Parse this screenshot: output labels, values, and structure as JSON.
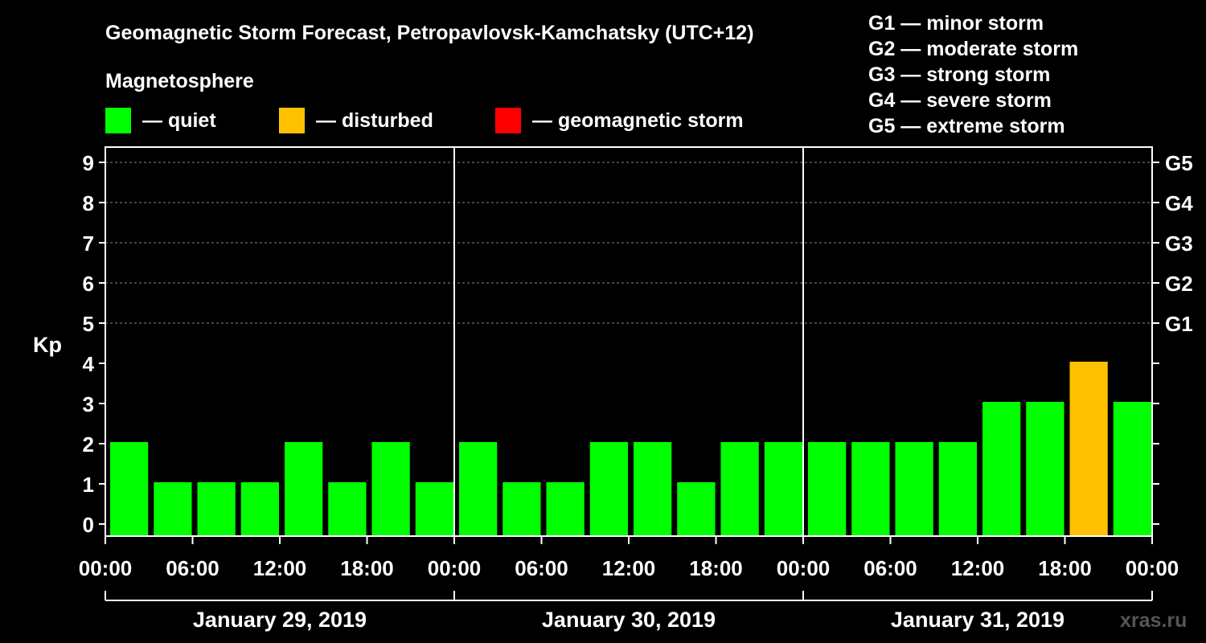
{
  "chart_data": {
    "type": "bar",
    "title": "Geomagnetic Storm Forecast, Petropavlovsk-Kamchatsky (UTC+12)",
    "legend_title": "Magnetosphere",
    "legend": [
      {
        "label": "— quiet",
        "color": "#00ff00"
      },
      {
        "label": "— disturbed",
        "color": "#ffc000"
      },
      {
        "label": "— geomagnetic storm",
        "color": "#ff0000"
      }
    ],
    "storm_levels": [
      "G1 — minor storm",
      "G2 — moderate storm",
      "G3 — strong storm",
      "G4 — severe storm",
      "G5 — extreme storm"
    ],
    "ylabel": "Kp",
    "ylim": [
      0,
      9
    ],
    "y_ticks": [
      "0",
      "1",
      "2",
      "3",
      "4",
      "5",
      "6",
      "7",
      "8",
      "9"
    ],
    "right_ticks": [
      {
        "kp": 5,
        "label": "G1"
      },
      {
        "kp": 6,
        "label": "G2"
      },
      {
        "kp": 7,
        "label": "G3"
      },
      {
        "kp": 8,
        "label": "G4"
      },
      {
        "kp": 9,
        "label": "G5"
      }
    ],
    "x_tick_labels": [
      "00:00",
      "06:00",
      "12:00",
      "18:00",
      "00:00",
      "06:00",
      "12:00",
      "18:00",
      "00:00",
      "06:00",
      "12:00",
      "18:00",
      "00:00"
    ],
    "days": [
      "January 29, 2019",
      "January 30, 2019",
      "January 31, 2019"
    ],
    "interval_hours": 3,
    "values": [
      2,
      1,
      1,
      1,
      2,
      1,
      2,
      1,
      2,
      1,
      1,
      2,
      2,
      1,
      2,
      2,
      2,
      2,
      2,
      2,
      3,
      3,
      4,
      3
    ],
    "colors": {
      "quiet": "#00ff00",
      "disturbed": "#ffc000",
      "storm": "#ff0000"
    },
    "grid": "dashed at Kp 5-9"
  },
  "watermark": "xras.ru"
}
